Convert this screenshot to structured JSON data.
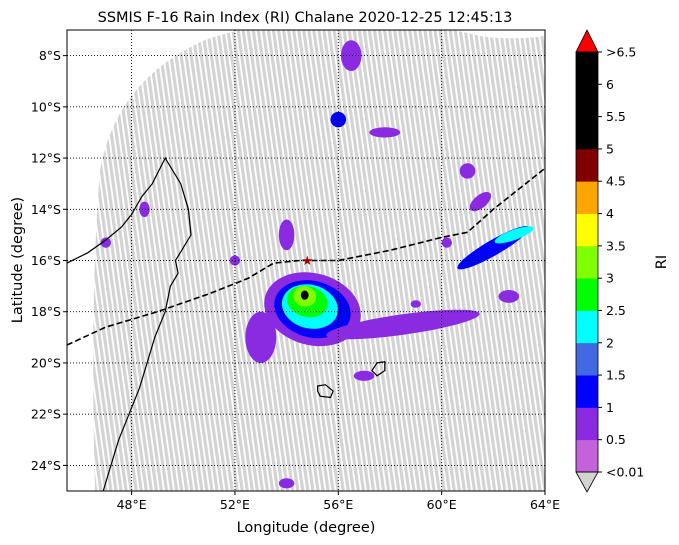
{
  "title": "SSMIS F-16 Rain Index (RI) Chalane 2020-12-25 12:45:13",
  "xlabel": "Longitude (degree)",
  "ylabel": "Latitude (degree)",
  "colorbar_label": "RI",
  "x_ticks": [
    {
      "value": 48,
      "label": "48°E"
    },
    {
      "value": 52,
      "label": "52°E"
    },
    {
      "value": 56,
      "label": "56°E"
    },
    {
      "value": 60,
      "label": "60°E"
    },
    {
      "value": 64,
      "label": "64°E"
    }
  ],
  "y_ticks": [
    {
      "value": -8,
      "label": "8°S"
    },
    {
      "value": -10,
      "label": "10°S"
    },
    {
      "value": -12,
      "label": "12°S"
    },
    {
      "value": -14,
      "label": "14°S"
    },
    {
      "value": -16,
      "label": "16°S"
    },
    {
      "value": -18,
      "label": "18°S"
    },
    {
      "value": -20,
      "label": "20°S"
    },
    {
      "value": -22,
      "label": "22°S"
    },
    {
      "value": -24,
      "label": "24°S"
    }
  ],
  "colorbar_bins": [
    {
      "color": "#c462dc"
    },
    {
      "color": "#8a2be2"
    },
    {
      "color": "#0000ff"
    },
    {
      "color": "#4169e1"
    },
    {
      "color": "#00ffff"
    },
    {
      "color": "#00ff00"
    },
    {
      "color": "#7fff00"
    },
    {
      "color": "#ffff00"
    },
    {
      "color": "#ffa500"
    },
    {
      "color": "#800000"
    },
    {
      "color": "#000000"
    },
    {
      "color": "#000000"
    },
    {
      "color": "#000000"
    }
  ],
  "colorbar_over_color": "#ff0000",
  "colorbar_under_color": "#d3d3d3",
  "colorbar_ticks": [
    "<0.01",
    "0.5",
    "1",
    "1.5",
    "2",
    "2.5",
    "3",
    "3.5",
    "4",
    "4.5",
    "5",
    "5.5",
    "6",
    ">6.5"
  ],
  "chart_data": {
    "type": "map",
    "xlim": [
      45.5,
      64
    ],
    "ylim": [
      -25,
      -7
    ],
    "swath_color": "#d3d3d3",
    "storm_center": {
      "lon": 54.8,
      "lat": -16.0,
      "color": "#a50000"
    },
    "track": [
      [
        45.5,
        -19.3
      ],
      [
        47,
        -18.6
      ],
      [
        49,
        -18.0
      ],
      [
        51,
        -17.3
      ],
      [
        52.5,
        -16.7
      ],
      [
        53.5,
        -16.1
      ],
      [
        54.5,
        -16.0
      ],
      [
        56,
        -16.0
      ],
      [
        58,
        -15.6
      ],
      [
        60,
        -15.1
      ],
      [
        61,
        -14.9
      ],
      [
        62,
        -14.0
      ],
      [
        63,
        -13.2
      ],
      [
        64,
        -12.4
      ]
    ],
    "rain_cells": [
      {
        "lon": 55.0,
        "lat": -17.9,
        "rx": 1.9,
        "ry": 1.4,
        "rot": 15,
        "ri": 0.5
      },
      {
        "lon": 55.0,
        "lat": -17.9,
        "rx": 1.5,
        "ry": 1.1,
        "rot": 15,
        "ri": 1.0
      },
      {
        "lon": 54.9,
        "lat": -17.8,
        "rx": 1.1,
        "ry": 0.85,
        "rot": 15,
        "ri": 2.0
      },
      {
        "lon": 54.8,
        "lat": -17.6,
        "rx": 0.8,
        "ry": 0.6,
        "rot": 15,
        "ri": 2.5
      },
      {
        "lon": 54.7,
        "lat": -17.4,
        "rx": 0.45,
        "ry": 0.4,
        "rot": 15,
        "ri": 3.0
      },
      {
        "lon": 54.7,
        "lat": -17.35,
        "rx": 0.15,
        "ry": 0.18,
        "rot": 0,
        "ri": 5.0
      },
      {
        "lon": 58.5,
        "lat": -18.5,
        "rx": 3.0,
        "ry": 0.4,
        "rot": -8,
        "ri": 0.5
      },
      {
        "lon": 53.0,
        "lat": -19.0,
        "rx": 0.6,
        "ry": 1.0,
        "rot": 0,
        "ri": 0.5
      },
      {
        "lon": 54.0,
        "lat": -15.0,
        "rx": 0.3,
        "ry": 0.6,
        "rot": 0,
        "ri": 0.5
      },
      {
        "lon": 62.0,
        "lat": -15.5,
        "rx": 1.6,
        "ry": 0.3,
        "rot": -30,
        "ri": 1.0
      },
      {
        "lon": 62.8,
        "lat": -15.0,
        "rx": 0.8,
        "ry": 0.2,
        "rot": -20,
        "ri": 2.0
      },
      {
        "lon": 61.5,
        "lat": -13.7,
        "rx": 0.5,
        "ry": 0.25,
        "rot": -40,
        "ri": 0.5
      },
      {
        "lon": 62.6,
        "lat": -17.4,
        "rx": 0.4,
        "ry": 0.25,
        "rot": 0,
        "ri": 0.5
      },
      {
        "lon": 56.0,
        "lat": -10.5,
        "rx": 0.3,
        "ry": 0.3,
        "rot": 0,
        "ri": 1.0
      },
      {
        "lon": 56.5,
        "lat": -8.0,
        "rx": 0.4,
        "ry": 0.6,
        "rot": 0,
        "ri": 0.5
      },
      {
        "lon": 57.8,
        "lat": -11.0,
        "rx": 0.6,
        "ry": 0.2,
        "rot": 0,
        "ri": 0.5
      },
      {
        "lon": 61.0,
        "lat": -12.5,
        "rx": 0.3,
        "ry": 0.3,
        "rot": 0,
        "ri": 0.5
      },
      {
        "lon": 57.0,
        "lat": -20.5,
        "rx": 0.4,
        "ry": 0.2,
        "rot": 0,
        "ri": 0.5
      },
      {
        "lon": 54.0,
        "lat": -24.7,
        "rx": 0.3,
        "ry": 0.2,
        "rot": 0,
        "ri": 0.5
      },
      {
        "lon": 48.5,
        "lat": -14.0,
        "rx": 0.2,
        "ry": 0.3,
        "rot": 0,
        "ri": 0.5
      },
      {
        "lon": 47.0,
        "lat": -15.3,
        "rx": 0.2,
        "ry": 0.2,
        "rot": 0,
        "ri": 0.5
      },
      {
        "lon": 59.0,
        "lat": -17.7,
        "rx": 0.2,
        "ry": 0.15,
        "rot": 0,
        "ri": 0.5
      },
      {
        "lon": 52.0,
        "lat": -16.0,
        "rx": 0.2,
        "ry": 0.2,
        "rot": 0,
        "ri": 0.5
      },
      {
        "lon": 60.2,
        "lat": -15.3,
        "rx": 0.2,
        "ry": 0.2,
        "rot": 0,
        "ri": 0.5
      }
    ],
    "madagascar": [
      [
        45.5,
        -16.1
      ],
      [
        46.3,
        -15.7
      ],
      [
        47.0,
        -15.2
      ],
      [
        47.6,
        -14.7
      ],
      [
        48.0,
        -14.2
      ],
      [
        48.4,
        -13.5
      ],
      [
        48.8,
        -13.0
      ],
      [
        49.3,
        -12.0
      ],
      [
        49.9,
        -13.0
      ],
      [
        50.2,
        -14.0
      ],
      [
        50.3,
        -15.0
      ],
      [
        50.0,
        -15.5
      ],
      [
        49.7,
        -16.0
      ],
      [
        49.8,
        -16.5
      ],
      [
        49.5,
        -17.0
      ],
      [
        49.3,
        -18.0
      ],
      [
        48.9,
        -19.0
      ],
      [
        48.6,
        -20.0
      ],
      [
        48.3,
        -21.0
      ],
      [
        47.9,
        -22.0
      ],
      [
        47.5,
        -23.0
      ],
      [
        47.2,
        -24.0
      ],
      [
        46.9,
        -25.0
      ]
    ],
    "islands": [
      {
        "name": "Réunion",
        "points": [
          [
            55.2,
            -20.9
          ],
          [
            55.5,
            -20.85
          ],
          [
            55.8,
            -21.1
          ],
          [
            55.7,
            -21.35
          ],
          [
            55.3,
            -21.3
          ],
          [
            55.2,
            -21.1
          ]
        ]
      },
      {
        "name": "Mauritius",
        "points": [
          [
            57.5,
            -20.0
          ],
          [
            57.8,
            -19.95
          ],
          [
            57.8,
            -20.3
          ],
          [
            57.5,
            -20.5
          ],
          [
            57.3,
            -20.3
          ]
        ]
      }
    ]
  }
}
